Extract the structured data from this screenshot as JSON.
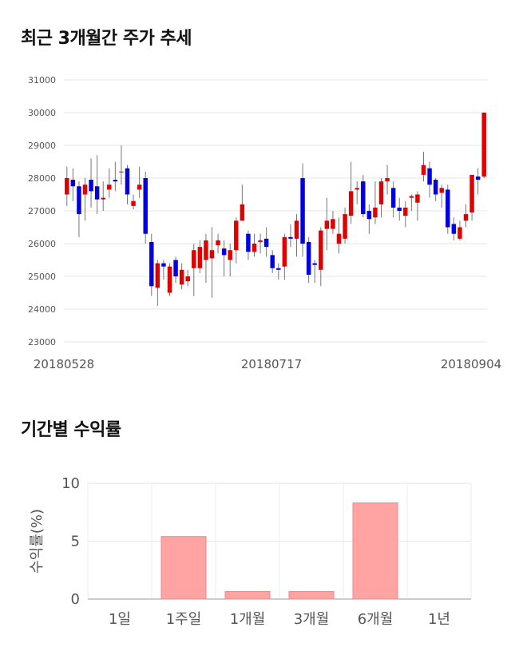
{
  "sections": {
    "price_title": "최근 3개월간 주가 추세",
    "returns_title": "기간별 수익률"
  },
  "chart_data": [
    {
      "type": "candlestick",
      "title": "최근 3개월간 주가 추세",
      "y_ticks": [
        23000,
        24000,
        25000,
        26000,
        27000,
        28000,
        29000,
        30000,
        31000
      ],
      "ylim": [
        23000,
        31000
      ],
      "x_tick_labels": [
        "20180528",
        "20180717",
        "20180904"
      ],
      "grid": true,
      "colors": {
        "up": "#e00000",
        "down": "#0000e0",
        "wick": "#777777"
      },
      "candles": [
        [
          27500,
          28000,
          27150,
          28350
        ],
        [
          27950,
          27750,
          27300,
          28300
        ],
        [
          27750,
          26900,
          26200,
          27900
        ],
        [
          27500,
          27800,
          26700,
          28000
        ],
        [
          27950,
          27600,
          27100,
          28600
        ],
        [
          27750,
          27350,
          26900,
          28700
        ],
        [
          27350,
          27400,
          27000,
          27900
        ],
        [
          27650,
          27800,
          27400,
          28300
        ],
        [
          27950,
          27900,
          27600,
          28500
        ],
        [
          28200,
          28200,
          27800,
          29000
        ],
        [
          28300,
          27500,
          27200,
          28400
        ],
        [
          27150,
          27300,
          27050,
          27500
        ],
        [
          27650,
          27800,
          27400,
          28350
        ],
        [
          28000,
          26300,
          26000,
          28200
        ],
        [
          26050,
          24700,
          24400,
          26300
        ],
        [
          24650,
          25400,
          24100,
          25500
        ],
        [
          25400,
          25300,
          24900,
          25500
        ],
        [
          24500,
          25300,
          24400,
          25400
        ],
        [
          25500,
          25000,
          24800,
          25600
        ],
        [
          24750,
          25200,
          24600,
          25400
        ],
        [
          24850,
          25000,
          24700,
          25200
        ],
        [
          25250,
          25800,
          24400,
          26000
        ],
        [
          25250,
          25900,
          25100,
          26100
        ],
        [
          25500,
          26100,
          24800,
          26300
        ],
        [
          25550,
          25800,
          24350,
          26500
        ],
        [
          25950,
          26100,
          25700,
          26300
        ],
        [
          25850,
          25650,
          25000,
          26100
        ],
        [
          25500,
          25800,
          25000,
          26000
        ],
        [
          25800,
          26700,
          25400,
          26800
        ],
        [
          26700,
          27200,
          26700,
          27800
        ],
        [
          26300,
          25750,
          25500,
          26400
        ],
        [
          25750,
          26000,
          25600,
          26300
        ],
        [
          26050,
          26100,
          25700,
          26300
        ],
        [
          26150,
          25900,
          25600,
          26500
        ],
        [
          25650,
          25250,
          25100,
          25800
        ],
        [
          25250,
          25200,
          24900,
          25400
        ],
        [
          25300,
          26200,
          24900,
          26300
        ],
        [
          26200,
          26150,
          25900,
          26600
        ],
        [
          26150,
          26700,
          25600,
          26900
        ],
        [
          28000,
          26000,
          25600,
          28450
        ],
        [
          26050,
          25050,
          24800,
          26200
        ],
        [
          25400,
          25350,
          24800,
          25500
        ],
        [
          25200,
          26400,
          24700,
          26500
        ],
        [
          26450,
          26700,
          25800,
          27400
        ],
        [
          26450,
          26750,
          26300,
          27000
        ],
        [
          26000,
          26300,
          25700,
          26800
        ],
        [
          26150,
          26900,
          26000,
          27100
        ],
        [
          26850,
          27600,
          26600,
          28500
        ],
        [
          27650,
          27700,
          27200,
          27900
        ],
        [
          27900,
          26900,
          26800,
          28100
        ],
        [
          27000,
          26750,
          26300,
          27200
        ],
        [
          26800,
          27100,
          26600,
          27900
        ],
        [
          27200,
          27900,
          26800,
          28000
        ],
        [
          27900,
          28000,
          27500,
          28400
        ],
        [
          27700,
          27100,
          26800,
          27900
        ],
        [
          27100,
          27000,
          26700,
          27400
        ],
        [
          26850,
          27100,
          26500,
          27300
        ],
        [
          27400,
          27450,
          27000,
          27500
        ],
        [
          27250,
          27500,
          26700,
          27600
        ],
        [
          28100,
          28400,
          27900,
          28800
        ],
        [
          28300,
          27800,
          27400,
          28500
        ],
        [
          27950,
          27500,
          27300,
          28000
        ],
        [
          27550,
          27700,
          27100,
          27800
        ],
        [
          27650,
          26500,
          26300,
          27800
        ],
        [
          26600,
          26300,
          26100,
          26800
        ],
        [
          26150,
          26500,
          26100,
          26700
        ],
        [
          26700,
          26900,
          26500,
          27200
        ],
        [
          26950,
          28100,
          26700,
          28100
        ],
        [
          28050,
          27950,
          27500,
          28300
        ],
        [
          28050,
          30000,
          28000,
          30000
        ]
      ]
    },
    {
      "type": "bar",
      "title": "기간별 수익률",
      "categories": [
        "1일",
        "1주일",
        "1개월",
        "3개월",
        "6개월",
        "1년"
      ],
      "values": [
        0,
        5.4,
        0.65,
        0.65,
        8.3,
        0
      ],
      "ylabel": "수익률(%)",
      "y_ticks": [
        0,
        5,
        10
      ],
      "ylim": [
        0,
        10
      ],
      "grid": true,
      "colors": {
        "bar": "#ffa3a3",
        "bar_stroke": "#e88888"
      }
    }
  ]
}
